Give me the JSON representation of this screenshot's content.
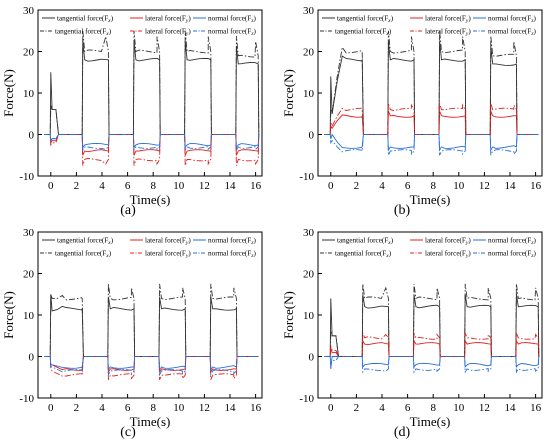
{
  "figure": {
    "legend_labels": {
      "tan_meas": "tangential force(F",
      "lat_meas": "lateral force(F",
      "nor_meas": "normal force(F",
      "tan_sim": "tangential force(F",
      "lat_sim": "lateral force(F",
      "nor_sim": "normal force(F",
      "sub_x": "x",
      "sub_y": "y",
      "sub_z": "z"
    },
    "colors": {
      "tangential": "#333333",
      "lateral": "#e02020",
      "normal": "#2a6fd6"
    }
  },
  "chart_data": [
    {
      "type": "line",
      "panel_label": "(a)",
      "xlabel": "Time(s)",
      "ylabel": "Force(N)",
      "xlim": [
        -1,
        16.5
      ],
      "ylim": [
        -10,
        30
      ],
      "xticks": [
        0,
        2,
        4,
        6,
        8,
        10,
        12,
        14,
        16
      ],
      "yticks": [
        -10,
        0,
        10,
        20,
        30
      ],
      "contact_windows": [
        [
          2.5,
          4.5
        ],
        [
          6.5,
          8.5
        ],
        [
          10.5,
          12.5
        ],
        [
          14.5,
          16.2
        ]
      ],
      "series": [
        {
          "name": "tangential force(Fx)",
          "style": "solid",
          "startup_peak": 15,
          "startup_level": 6,
          "window_levels": [
            18,
            18,
            18,
            17
          ]
        },
        {
          "name": "lateral force(Fy)",
          "style": "solid",
          "startup_peak": -2,
          "startup_level": -1.5,
          "window_levels": [
            -4,
            -4,
            -4,
            -4
          ]
        },
        {
          "name": "normal force(Fz)",
          "style": "solid",
          "startup_peak": -1.5,
          "startup_level": -1,
          "window_levels": [
            -2.5,
            -2.5,
            -2.5,
            -2.5
          ]
        },
        {
          "name": "tangential force(Fx)",
          "style": "dashdot",
          "startup_peak": 7,
          "startup_level": 6,
          "window_levels": [
            20,
            20,
            20,
            19
          ]
        },
        {
          "name": "lateral force(Fy)",
          "style": "dashdot",
          "startup_peak": -2.5,
          "startup_level": -2,
          "window_levels": [
            -6,
            -6,
            -6,
            -6
          ]
        },
        {
          "name": "normal force(Fz)",
          "style": "dashdot",
          "startup_peak": -1.5,
          "startup_level": -1,
          "window_levels": [
            -3,
            -3,
            -3,
            -3
          ]
        }
      ]
    },
    {
      "type": "line",
      "panel_label": "(b)",
      "xlabel": "Time(s)",
      "ylabel": "Force(N)",
      "xlim": [
        -1,
        16.5
      ],
      "ylim": [
        -10,
        30
      ],
      "xticks": [
        0,
        2,
        4,
        6,
        8,
        10,
        12,
        14,
        16
      ],
      "yticks": [
        -10,
        0,
        10,
        20,
        30
      ],
      "contact_windows": [
        [
          0.2,
          2.5
        ],
        [
          4.5,
          6.5
        ],
        [
          8.5,
          10.5
        ],
        [
          12.5,
          14.5
        ]
      ],
      "series": [
        {
          "name": "tangential force(Fx)",
          "style": "solid",
          "startup_peak": 14,
          "startup_level": 5,
          "window_levels": [
            18,
            18,
            18,
            17
          ]
        },
        {
          "name": "lateral force(Fy)",
          "style": "solid",
          "startup_peak": 2,
          "startup_level": 1.5,
          "window_levels": [
            4.5,
            4.5,
            4.5,
            4.5
          ]
        },
        {
          "name": "normal force(Fz)",
          "style": "solid",
          "startup_peak": -1,
          "startup_level": 0,
          "window_levels": [
            -3,
            -3,
            -3,
            -3
          ]
        },
        {
          "name": "tangential force(Fx)",
          "style": "dashdot",
          "startup_peak": 6,
          "startup_level": 5,
          "window_levels": [
            20,
            20,
            20,
            19
          ]
        },
        {
          "name": "lateral force(Fy)",
          "style": "dashdot",
          "startup_peak": 3,
          "startup_level": 2,
          "window_levels": [
            6,
            6,
            6,
            6
          ]
        },
        {
          "name": "normal force(Fz)",
          "style": "dashdot",
          "startup_peak": -2,
          "startup_level": -1.5,
          "window_levels": [
            -4,
            -4,
            -4,
            -4
          ]
        }
      ]
    },
    {
      "type": "line",
      "panel_label": "(c)",
      "xlabel": "Time(s)",
      "ylabel": "Force(N)",
      "xlim": [
        -1,
        16.5
      ],
      "ylim": [
        -10,
        30
      ],
      "xticks": [
        0,
        2,
        4,
        6,
        8,
        10,
        12,
        14,
        16
      ],
      "yticks": [
        -10,
        0,
        10,
        20,
        30
      ],
      "contact_windows": [
        [
          0.2,
          2.5
        ],
        [
          4.5,
          6.5
        ],
        [
          8.5,
          10.5
        ],
        [
          12.5,
          14.5
        ]
      ],
      "series": [
        {
          "name": "tangential force(Fx)",
          "style": "solid",
          "startup_peak": 15,
          "startup_level": 11,
          "window_levels": [
            11.5,
            11.5,
            11.5,
            11.5
          ]
        },
        {
          "name": "lateral force(Fy)",
          "style": "solid",
          "startup_peak": -2,
          "startup_level": -2,
          "window_levels": [
            -3,
            -3,
            -3,
            -3
          ]
        },
        {
          "name": "normal force(Fz)",
          "style": "solid",
          "startup_peak": -2,
          "startup_level": -2,
          "window_levels": [
            -2.5,
            -2.5,
            -2.5,
            -2.5
          ]
        },
        {
          "name": "tangential force(Fx)",
          "style": "dashdot",
          "startup_peak": 15,
          "startup_level": 14,
          "window_levels": [
            14,
            14,
            14,
            14
          ]
        },
        {
          "name": "lateral force(Fy)",
          "style": "dashdot",
          "startup_peak": -3,
          "startup_level": -3.5,
          "window_levels": [
            -4.5,
            -4.5,
            -4.5,
            -4.5
          ]
        },
        {
          "name": "normal force(Fz)",
          "style": "dashdot",
          "startup_peak": -2.5,
          "startup_level": -2.5,
          "window_levels": [
            -3.5,
            -3.5,
            -3.5,
            -3.5
          ]
        }
      ]
    },
    {
      "type": "line",
      "panel_label": "(d)",
      "xlabel": "Time(s)",
      "ylabel": "Force(N)",
      "xlim": [
        -1,
        16.5
      ],
      "ylim": [
        -10,
        30
      ],
      "xticks": [
        0,
        2,
        4,
        6,
        8,
        10,
        12,
        14,
        16
      ],
      "yticks": [
        -10,
        0,
        10,
        20,
        30
      ],
      "contact_windows": [
        [
          2.5,
          4.5
        ],
        [
          6.5,
          8.5
        ],
        [
          10.5,
          12.5
        ],
        [
          14.5,
          16.2
        ]
      ],
      "series": [
        {
          "name": "tangential force(Fx)",
          "style": "solid",
          "startup_peak": 14,
          "startup_level": 5,
          "window_levels": [
            12,
            12,
            12,
            12
          ]
        },
        {
          "name": "lateral force(Fy)",
          "style": "solid",
          "startup_peak": 2,
          "startup_level": 1,
          "window_levels": [
            3,
            3,
            3,
            3
          ]
        },
        {
          "name": "normal force(Fz)",
          "style": "solid",
          "startup_peak": -3,
          "startup_level": 0,
          "window_levels": [
            -2,
            -2,
            -2,
            -2
          ]
        },
        {
          "name": "tangential force(Fx)",
          "style": "dashdot",
          "startup_peak": 6,
          "startup_level": 5,
          "window_levels": [
            14,
            14,
            14,
            14
          ]
        },
        {
          "name": "lateral force(Fy)",
          "style": "dashdot",
          "startup_peak": 2.5,
          "startup_level": 1.5,
          "window_levels": [
            4.5,
            4.5,
            4.5,
            4.5
          ]
        },
        {
          "name": "normal force(Fz)",
          "style": "dashdot",
          "startup_peak": -2,
          "startup_level": -1,
          "window_levels": [
            -3,
            -3,
            -3,
            -3
          ]
        }
      ]
    }
  ]
}
